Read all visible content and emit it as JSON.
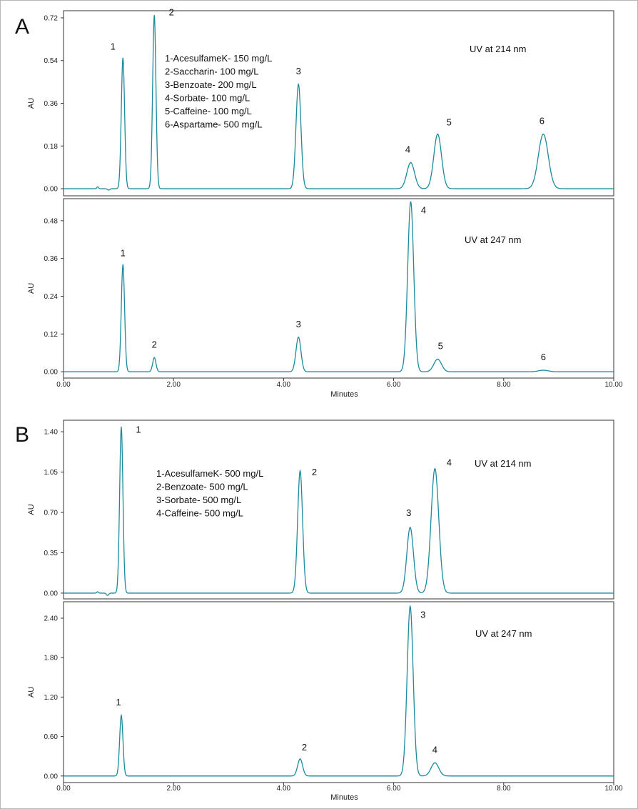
{
  "figure": {
    "panels": [
      {
        "letter": "A",
        "xlabel": "Minutes",
        "x_ticks": [
          "0.00",
          "2.00",
          "4.00",
          "6.00",
          "8.00",
          "10.00"
        ]
      },
      {
        "letter": "B",
        "xlabel": "Minutes",
        "x_ticks": [
          "0.00",
          "2.00",
          "4.00",
          "6.00",
          "8.00",
          "10.00"
        ]
      }
    ],
    "trace_color": "#1a8a9c"
  },
  "chart_data": [
    {
      "type": "line",
      "panel": "A",
      "title": "UV at 214 nm",
      "xlabel": "",
      "ylabel": "AU",
      "xlim": [
        0,
        10
      ],
      "ylim": [
        -0.03,
        0.75
      ],
      "y_ticks": [
        "0.00",
        "0.18",
        "0.36",
        "0.54",
        "0.72"
      ],
      "y_tick_values": [
        0,
        0.18,
        0.36,
        0.54,
        0.72
      ],
      "legend": [
        "1-AcesulfameK- 150 mg/L",
        "2-Saccharin- 100 mg/L",
        "3-Benzoate- 200 mg/L",
        "4-Sorbate- 100 mg/L",
        "5-Caffeine- 100 mg/L",
        "6-Aspartame- 500 mg/L"
      ],
      "peaks": [
        {
          "label": "1",
          "rt": 1.08,
          "height": 0.55,
          "width": 0.03
        },
        {
          "label": "2",
          "rt": 1.65,
          "height": 0.73,
          "width": 0.03
        },
        {
          "label": "3",
          "rt": 4.27,
          "height": 0.44,
          "width": 0.045
        },
        {
          "label": "4",
          "rt": 6.31,
          "height": 0.11,
          "width": 0.07
        },
        {
          "label": "5",
          "rt": 6.8,
          "height": 0.23,
          "width": 0.07
        },
        {
          "label": "6",
          "rt": 8.72,
          "height": 0.23,
          "width": 0.09
        }
      ],
      "baseline_noise": [
        {
          "rt": 0.62,
          "height": 0.008,
          "width": 0.015
        },
        {
          "rt": 0.82,
          "height": -0.006,
          "width": 0.02
        }
      ]
    },
    {
      "type": "line",
      "panel": "A",
      "title": "UV at 247 nm",
      "xlabel": "Minutes",
      "ylabel": "AU",
      "xlim": [
        0,
        10
      ],
      "ylim": [
        -0.02,
        0.55
      ],
      "y_ticks": [
        "0.00",
        "0.12",
        "0.24",
        "0.36",
        "0.48"
      ],
      "y_tick_values": [
        0,
        0.12,
        0.24,
        0.36,
        0.48
      ],
      "legend": [],
      "peaks": [
        {
          "label": "1",
          "rt": 1.08,
          "height": 0.34,
          "width": 0.03
        },
        {
          "label": "2",
          "rt": 1.65,
          "height": 0.045,
          "width": 0.03
        },
        {
          "label": "3",
          "rt": 4.27,
          "height": 0.11,
          "width": 0.045
        },
        {
          "label": "4",
          "rt": 6.31,
          "height": 0.54,
          "width": 0.055
        },
        {
          "label": "5",
          "rt": 6.8,
          "height": 0.04,
          "width": 0.07
        },
        {
          "label": "6",
          "rt": 8.72,
          "height": 0.005,
          "width": 0.09
        }
      ],
      "baseline_noise": []
    },
    {
      "type": "line",
      "panel": "B",
      "title": "UV at 214 nm",
      "xlabel": "",
      "ylabel": "AU",
      "xlim": [
        0,
        10
      ],
      "ylim": [
        -0.05,
        1.5
      ],
      "y_ticks": [
        "0.00",
        "0.35",
        "0.70",
        "1.05",
        "1.40"
      ],
      "y_tick_values": [
        0,
        0.35,
        0.7,
        1.05,
        1.4
      ],
      "legend": [
        "1-AcesulfameK- 500 mg/L",
        "2-Benzoate- 500 mg/L",
        "3-Sorbate- 500 mg/L",
        "4-Caffeine- 500 mg/L"
      ],
      "peaks": [
        {
          "label": "1",
          "rt": 1.05,
          "height": 1.44,
          "width": 0.03
        },
        {
          "label": "2",
          "rt": 4.3,
          "height": 1.06,
          "width": 0.045
        },
        {
          "label": "3",
          "rt": 6.3,
          "height": 0.57,
          "width": 0.06
        },
        {
          "label": "4",
          "rt": 6.75,
          "height": 1.08,
          "width": 0.07
        }
      ],
      "baseline_noise": [
        {
          "rt": 0.62,
          "height": 0.012,
          "width": 0.015
        },
        {
          "rt": 0.8,
          "height": -0.02,
          "width": 0.02
        }
      ]
    },
    {
      "type": "line",
      "panel": "B",
      "title": "UV at 247 nm",
      "xlabel": "Minutes",
      "ylabel": "AU",
      "xlim": [
        0,
        10
      ],
      "ylim": [
        -0.1,
        2.65
      ],
      "y_ticks": [
        "0.00",
        "0.60",
        "1.20",
        "1.80",
        "2.40"
      ],
      "y_tick_values": [
        0,
        0.6,
        1.2,
        1.8,
        2.4
      ],
      "legend": [],
      "peaks": [
        {
          "label": "1",
          "rt": 1.05,
          "height": 0.92,
          "width": 0.03
        },
        {
          "label": "2",
          "rt": 4.3,
          "height": 0.26,
          "width": 0.045
        },
        {
          "label": "3",
          "rt": 6.3,
          "height": 2.58,
          "width": 0.055
        },
        {
          "label": "4",
          "rt": 6.75,
          "height": 0.2,
          "width": 0.07
        }
      ],
      "baseline_noise": []
    }
  ]
}
